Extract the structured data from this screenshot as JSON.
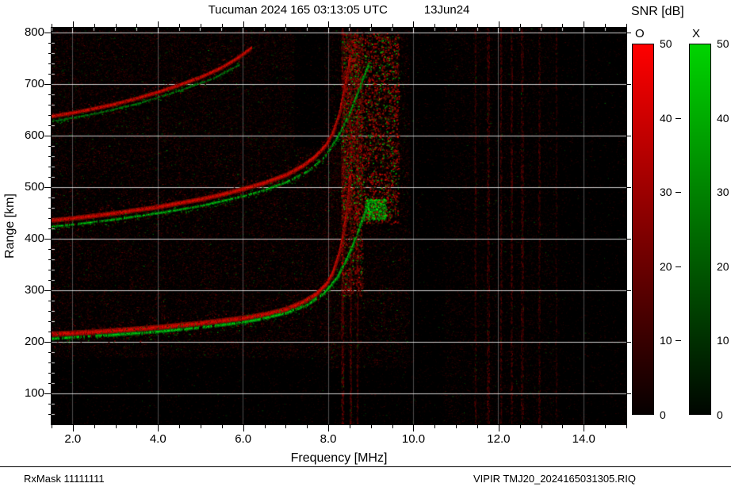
{
  "title": {
    "main": "Tucuman 2024 165 03:13:05 UTC",
    "date": "13Jun24"
  },
  "legend": {
    "title": "SNR [dB]",
    "range_db": [
      0,
      50
    ],
    "bars": [
      {
        "label": "O",
        "top_color": "#ff0000",
        "bottom_color": "#060000",
        "ticks": [
          "50",
          "40",
          "30",
          "20",
          "10",
          "0"
        ]
      },
      {
        "label": "X",
        "top_color": "#00d400",
        "bottom_color": "#000600",
        "ticks": [
          "50",
          "40",
          "30",
          "20",
          "10",
          "0"
        ]
      }
    ]
  },
  "axes": {
    "x": {
      "label": "Frequency [MHz]",
      "min": 1.5,
      "max": 15.0,
      "ticks": [
        2,
        4,
        6,
        8,
        10,
        12,
        14
      ],
      "tick_labels": [
        "2.0",
        "4.0",
        "6.0",
        "8.0",
        "10.0",
        "12.0",
        "14.0"
      ],
      "minor_step_mhz": 0.5
    },
    "y": {
      "label": "Range [km]",
      "min": 40,
      "max": 810,
      "ticks": [
        800,
        700,
        600,
        500,
        400,
        300,
        200,
        100
      ],
      "tick_labels": [
        "800",
        "700",
        "600",
        "500",
        "400",
        "300",
        "200",
        "100"
      ],
      "minor_step_km": 20
    }
  },
  "footer": {
    "left": "RxMask 11111111",
    "right": "VIPIR  TMJ20_2024165031305.RIQ"
  },
  "chart_data": {
    "type": "heatmap",
    "description": "VIPIR ionogram: echo SNR (0-50 dB) vs sounding frequency and virtual range. O-mode echoes shown in red, X-mode echoes in green over black noise background. F-region traces with first, second and third hop multiples; critical frequency region near 8.5 MHz with spread echoes; RFI stripes near 8.3-8.7 and 11.4-13.4 MHz.",
    "xlabel": "Frequency [MHz]",
    "ylabel": "Range [km]",
    "xlim": [
      1.5,
      15.0
    ],
    "ylim": [
      40,
      810
    ],
    "snr_range_db": [
      0,
      50
    ],
    "foF2_mhz": 8.5,
    "fxF2_mhz": 9.0,
    "series": [
      {
        "name": "F-trace 1st hop O-mode",
        "mode": "O",
        "width": 7,
        "points": [
          [
            1.5,
            215
          ],
          [
            2,
            217
          ],
          [
            2.5,
            219
          ],
          [
            3,
            222
          ],
          [
            3.5,
            225
          ],
          [
            4,
            228
          ],
          [
            4.5,
            232
          ],
          [
            5,
            236
          ],
          [
            5.5,
            241
          ],
          [
            6,
            246
          ],
          [
            6.5,
            253
          ],
          [
            7,
            263
          ],
          [
            7.4,
            277
          ],
          [
            7.7,
            292
          ],
          [
            7.95,
            312
          ],
          [
            8.1,
            335
          ],
          [
            8.25,
            372
          ],
          [
            8.35,
            412
          ],
          [
            8.43,
            455
          ],
          [
            8.48,
            495
          ],
          [
            8.5,
            522
          ]
        ]
      },
      {
        "name": "F-trace 1st hop X-mode",
        "mode": "X",
        "width": 4,
        "points": [
          [
            1.5,
            206
          ],
          [
            2,
            209
          ],
          [
            3,
            214
          ],
          [
            4,
            220
          ],
          [
            5,
            228
          ],
          [
            6,
            238
          ],
          [
            6.5,
            246
          ],
          [
            7,
            256
          ],
          [
            7.5,
            272
          ],
          [
            7.9,
            295
          ],
          [
            8.2,
            325
          ],
          [
            8.45,
            365
          ],
          [
            8.65,
            405
          ],
          [
            8.8,
            440
          ],
          [
            8.92,
            464
          ],
          [
            9.0,
            477
          ]
        ]
      },
      {
        "name": "F-trace 2nd hop O-mode",
        "mode": "O",
        "width": 6,
        "points": [
          [
            1.5,
            436
          ],
          [
            2,
            440
          ],
          [
            3,
            450
          ],
          [
            4,
            462
          ],
          [
            5,
            477
          ],
          [
            5.5,
            486
          ],
          [
            6,
            497
          ],
          [
            6.5,
            509
          ],
          [
            7,
            524
          ],
          [
            7.4,
            542
          ],
          [
            7.7,
            561
          ],
          [
            7.95,
            583
          ],
          [
            8.1,
            606
          ],
          [
            8.25,
            642
          ],
          [
            8.35,
            682
          ],
          [
            8.45,
            722
          ],
          [
            8.5,
            752
          ]
        ]
      },
      {
        "name": "F-trace 2nd hop X-mode",
        "mode": "X",
        "width": 3,
        "points": [
          [
            1.5,
            424
          ],
          [
            2,
            428
          ],
          [
            3,
            438
          ],
          [
            4,
            450
          ],
          [
            5,
            464
          ],
          [
            6,
            483
          ],
          [
            6.5,
            495
          ],
          [
            7,
            510
          ],
          [
            7.5,
            531
          ],
          [
            7.9,
            558
          ],
          [
            8.2,
            596
          ],
          [
            8.45,
            636
          ],
          [
            8.65,
            676
          ],
          [
            8.8,
            710
          ],
          [
            8.95,
            742
          ]
        ]
      },
      {
        "name": "F-trace 3rd hop O-mode",
        "mode": "O",
        "width": 5,
        "points": [
          [
            1.5,
            638
          ],
          [
            2,
            645
          ],
          [
            2.5,
            653
          ],
          [
            3,
            662
          ],
          [
            3.5,
            673
          ],
          [
            4,
            685
          ],
          [
            4.5,
            699
          ],
          [
            5,
            714
          ],
          [
            5.5,
            733
          ],
          [
            5.9,
            753
          ],
          [
            6.2,
            772
          ]
        ]
      },
      {
        "name": "F-trace 3rd hop X-mode",
        "mode": "X",
        "width": 2,
        "points": [
          [
            1.5,
            628
          ],
          [
            2.5,
            643
          ],
          [
            3.5,
            662
          ],
          [
            4.5,
            688
          ],
          [
            5.3,
            712
          ],
          [
            5.9,
            738
          ]
        ]
      }
    ],
    "noise_regions": [
      {
        "f": [
          1.5,
          15.0
        ],
        "r": [
          40,
          810
        ],
        "count": 26000,
        "max_intensity": 60,
        "green_fraction": 0.015
      },
      {
        "f": [
          1.5,
          8.4
        ],
        "r": [
          170,
          580
        ],
        "count": 20000,
        "max_intensity": 110,
        "green_fraction": 0.03
      },
      {
        "f": [
          1.5,
          7.2
        ],
        "r": [
          580,
          805
        ],
        "count": 11000,
        "max_intensity": 95,
        "green_fraction": 0.04
      },
      {
        "f": [
          7.9,
          9.9
        ],
        "r": [
          150,
          805
        ],
        "count": 8000,
        "max_intensity": 110,
        "green_fraction": 0.05
      },
      {
        "f": [
          10.7,
          13.3
        ],
        "r": [
          40,
          810
        ],
        "count": 8000,
        "max_intensity": 75,
        "green_fraction": 0.02
      }
    ],
    "rfi_stripes": [
      {
        "f": 8.33,
        "w": 3,
        "count": 1100,
        "max": 130,
        "green_fraction": 0.05
      },
      {
        "f": 8.52,
        "w": 2,
        "count": 800,
        "max": 120,
        "green_fraction": 0.05
      },
      {
        "f": 8.68,
        "w": 2,
        "count": 600,
        "max": 100,
        "green_fraction": 0.04
      },
      {
        "f": 11.45,
        "w": 2,
        "count": 500,
        "max": 90,
        "green_fraction": 0.02
      },
      {
        "f": 11.75,
        "w": 3,
        "count": 700,
        "max": 100,
        "green_fraction": 0.02
      },
      {
        "f": 12.05,
        "w": 2,
        "count": 550,
        "max": 95,
        "green_fraction": 0.02
      },
      {
        "f": 12.3,
        "w": 2,
        "count": 600,
        "max": 100,
        "green_fraction": 0.02
      },
      {
        "f": 12.55,
        "w": 3,
        "count": 650,
        "max": 95,
        "green_fraction": 0.02
      },
      {
        "f": 12.95,
        "w": 2,
        "count": 450,
        "max": 85,
        "green_fraction": 0.02
      },
      {
        "f": 13.35,
        "w": 2,
        "count": 350,
        "max": 70,
        "green_fraction": 0.02
      }
    ],
    "spread_f": [
      {
        "f": [
          8.35,
          9.65
        ],
        "r": [
          430,
          800
        ],
        "red": 2200,
        "green": 550,
        "max": 185
      },
      {
        "f": [
          8.3,
          8.8
        ],
        "r": [
          290,
          800
        ],
        "red": 1500,
        "green": 250,
        "max": 160
      },
      {
        "f": [
          8.85,
          9.35
        ],
        "r": [
          438,
          478
        ],
        "red": 150,
        "green": 420,
        "max": 230
      }
    ]
  }
}
